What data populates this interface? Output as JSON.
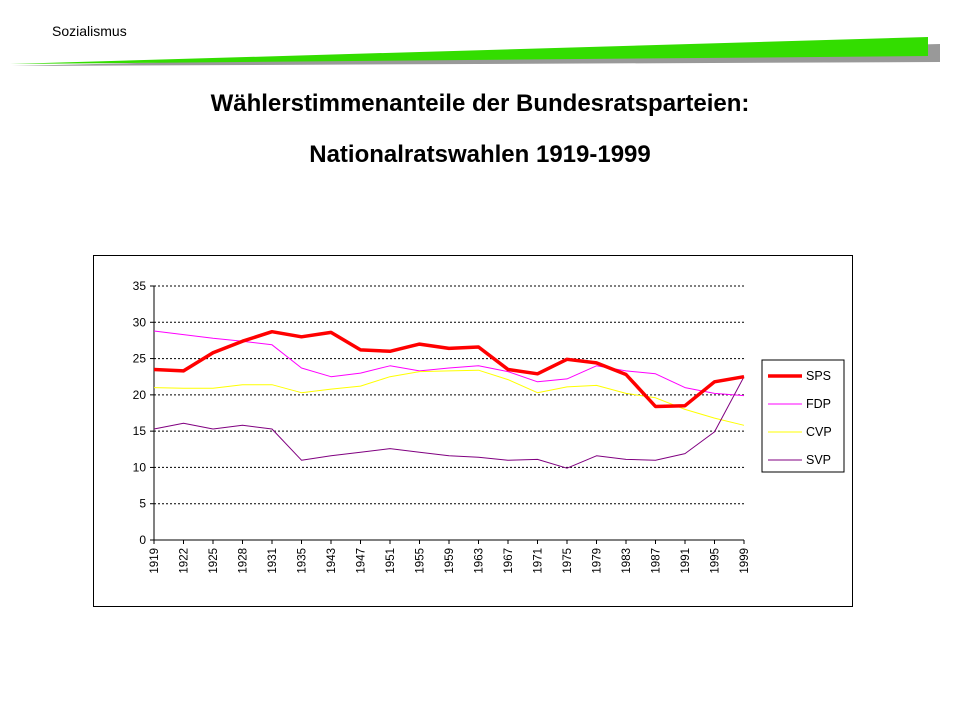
{
  "header": {
    "label": "Sozialismus",
    "accent_color": "#33dd00",
    "shadow_color": "#999999"
  },
  "title": {
    "line1": "Wählerstimmenanteile der Bundesratsparteien:",
    "line2": "Nationalratswahlen 1919-1999"
  },
  "chart_data": {
    "type": "line",
    "title": "",
    "xlabel": "",
    "ylabel": "",
    "ylim": [
      0,
      35
    ],
    "yticks": [
      0,
      5,
      10,
      15,
      20,
      25,
      30,
      35
    ],
    "grid": "horizontal dashed",
    "legend_position": "right",
    "categories": [
      "1919",
      "1922",
      "1925",
      "1928",
      "1931",
      "1935",
      "1943",
      "1947",
      "1951",
      "1955",
      "1959",
      "1963",
      "1967",
      "1971",
      "1975",
      "1979",
      "1983",
      "1987",
      "1991",
      "1995",
      "1999"
    ],
    "series": [
      {
        "name": "SPS",
        "color": "#ff0000",
        "width": 3.5,
        "values": [
          23.5,
          23.3,
          25.8,
          27.4,
          28.7,
          28.0,
          28.6,
          26.2,
          26.0,
          27.0,
          26.4,
          26.6,
          23.5,
          22.9,
          24.9,
          24.4,
          22.8,
          18.4,
          18.5,
          21.8,
          22.5
        ]
      },
      {
        "name": "FDP",
        "color": "#ff00ff",
        "width": 1,
        "values": [
          28.8,
          28.3,
          27.8,
          27.4,
          26.9,
          23.7,
          22.5,
          23.0,
          24.0,
          23.3,
          23.7,
          24.0,
          23.2,
          21.8,
          22.2,
          24.0,
          23.3,
          22.9,
          21.0,
          20.2,
          19.9
        ]
      },
      {
        "name": "CVP",
        "color": "#ffff00",
        "width": 1,
        "values": [
          21.0,
          20.9,
          20.9,
          21.4,
          21.4,
          20.3,
          20.8,
          21.2,
          22.5,
          23.2,
          23.3,
          23.4,
          22.1,
          20.3,
          21.1,
          21.3,
          20.2,
          19.6,
          18.0,
          16.8,
          15.8
        ]
      },
      {
        "name": "SVP",
        "color": "#800080",
        "width": 1,
        "values": [
          15.3,
          16.1,
          15.3,
          15.8,
          15.3,
          11.0,
          11.6,
          12.1,
          12.6,
          12.1,
          11.6,
          11.4,
          11.0,
          11.1,
          9.9,
          11.6,
          11.1,
          11.0,
          11.9,
          14.9,
          22.5
        ]
      }
    ]
  }
}
